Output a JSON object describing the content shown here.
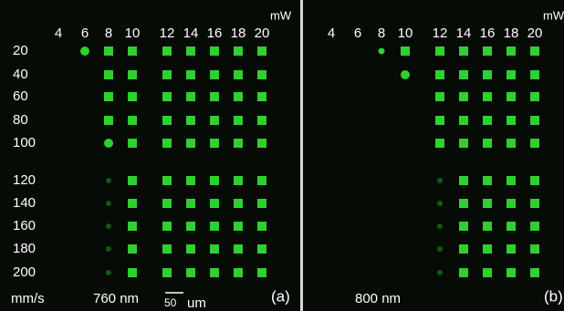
{
  "panels": [
    {
      "columns": [
        4,
        6,
        8,
        10,
        12,
        14,
        16,
        18,
        20
      ],
      "column_unit": "mW",
      "wavelength": "760 nm",
      "tag": "(a)"
    },
    {
      "columns": [
        4,
        6,
        8,
        10,
        12,
        14,
        16,
        18,
        20
      ],
      "column_unit": "mW",
      "wavelength": "800 nm",
      "tag": "(b)"
    }
  ],
  "rows": [
    20,
    40,
    60,
    80,
    100,
    120,
    140,
    160,
    180,
    200
  ],
  "row_unit": "mm/s",
  "scale_bar": {
    "length": "50",
    "unit": "um"
  }
}
